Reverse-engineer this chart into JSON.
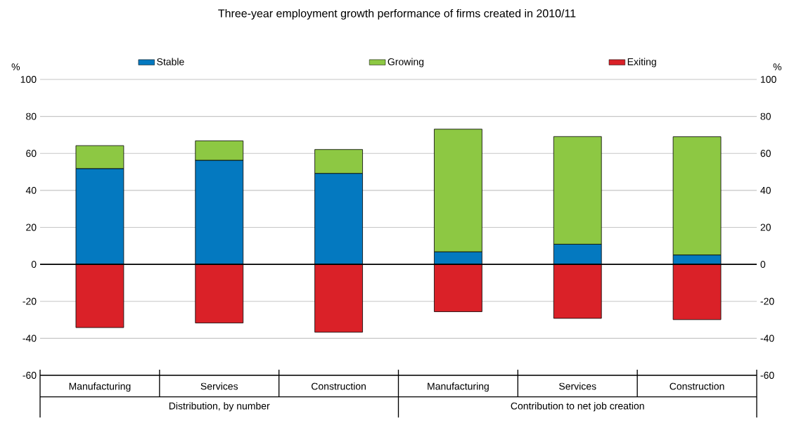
{
  "chart_data": {
    "type": "bar",
    "stacked": true,
    "title": "Three-year employment growth performance of firms created in 2010/11",
    "ylabel": "%",
    "y2label": "%",
    "categories": [
      "Manufacturing",
      "Services",
      "Construction",
      "Manufacturing",
      "Services",
      "Construction"
    ],
    "annotations": [
      "Distribution, by number",
      "Contribution to net job creation"
    ],
    "series": [
      {
        "name": "Stable",
        "color": "#0479c0",
        "values": [
          51.8,
          56.3,
          49.2,
          6.8,
          10.9,
          5.1
        ]
      },
      {
        "name": "Growing",
        "color": "#8dc843",
        "values": [
          12.4,
          10.5,
          12.9,
          66.3,
          58.2,
          63.9
        ]
      },
      {
        "name": "Exiting",
        "color": "#da2128",
        "values": [
          -34.2,
          -31.7,
          -36.7,
          -25.6,
          -29.2,
          -29.9
        ]
      }
    ],
    "ylim": [
      -60,
      100
    ],
    "yticks": [
      -60,
      -40,
      -20,
      0,
      20,
      40,
      60,
      80,
      100
    ],
    "y2lim": [
      -60,
      100
    ],
    "y2ticks": [
      -60,
      -40,
      -20,
      0,
      20,
      40,
      60,
      80,
      100
    ],
    "grid": "y",
    "legend": "top"
  }
}
